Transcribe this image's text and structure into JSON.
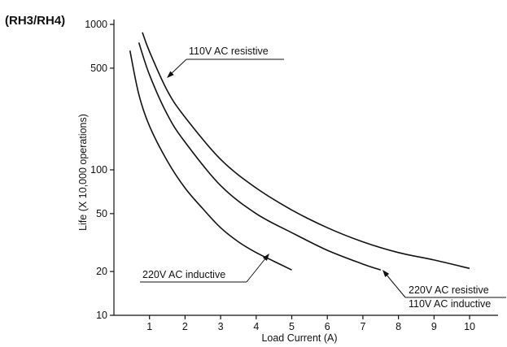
{
  "chart_data": {
    "type": "line",
    "title": "(RH3/RH4)",
    "xlabel": "Load Current (A)",
    "ylabel": "Life (X 10,000 operations)",
    "xlim": [
      0,
      10.8
    ],
    "ylim": [
      10,
      1000
    ],
    "y_scale": "log",
    "grid": false,
    "x_ticks": [
      1,
      2,
      3,
      4,
      5,
      6,
      7,
      8,
      9,
      10
    ],
    "y_ticks": [
      10,
      20,
      50,
      100,
      500,
      1000
    ],
    "series": [
      {
        "name": "110V AC resistive",
        "x": [
          0.8,
          1,
          1.5,
          2,
          3,
          4,
          5,
          6,
          7,
          8,
          9,
          10
        ],
        "y": [
          880,
          650,
          350,
          230,
          118,
          75,
          53,
          40,
          32,
          27,
          24,
          21
        ]
      },
      {
        "name": "220V AC resistive / 110V AC inductive",
        "x": [
          0.7,
          1,
          1.5,
          2,
          3,
          4,
          5,
          6,
          7,
          7.5
        ],
        "y": [
          750,
          450,
          240,
          155,
          78,
          50,
          37,
          28,
          22.5,
          20.5
        ]
      },
      {
        "name": "220V AC inductive",
        "x": [
          0.45,
          0.7,
          1,
          1.5,
          2,
          2.5,
          3,
          3.5,
          4,
          4.5,
          5
        ],
        "y": [
          660,
          330,
          200,
          115,
          75,
          54,
          40,
          32,
          27,
          23.5,
          20.5
        ]
      }
    ],
    "annotations": [
      {
        "text": "110V AC resistive",
        "series": 0
      },
      {
        "text": "220V AC resistive",
        "series": 1
      },
      {
        "text": "110V AC inductive",
        "series": 1
      },
      {
        "text": "220V AC inductive",
        "series": 2
      }
    ]
  }
}
